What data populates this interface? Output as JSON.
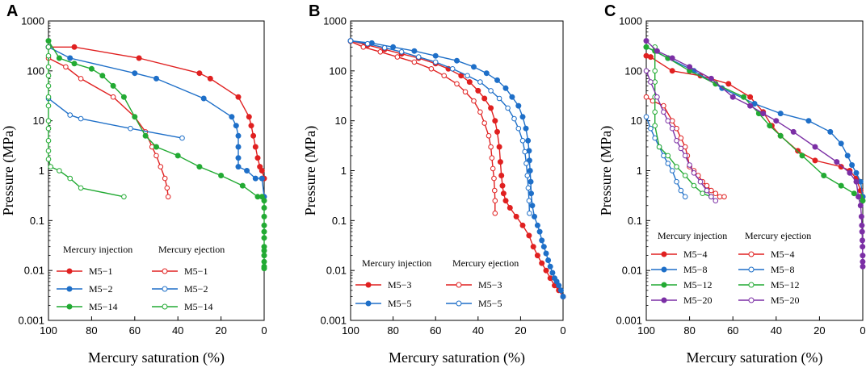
{
  "chart_data": [
    {
      "panel": "A",
      "type": "line",
      "xlabel": "Mercury saturation (%)",
      "ylabel": "Pressure (MPa)",
      "x_reversed": true,
      "xlim": [
        0,
        100
      ],
      "xticks": [
        100,
        80,
        60,
        40,
        20,
        0
      ],
      "y_scale": "log",
      "ylim": [
        0.001,
        1000
      ],
      "yticks": [
        1000,
        100,
        10,
        1,
        0.1,
        0.01,
        0.001
      ],
      "ytick_labels": [
        "1000",
        "100",
        "10",
        "1",
        "0.1",
        "0.01",
        "0.001"
      ],
      "legend_headers": [
        "Mercury injection",
        "Mercury ejection"
      ],
      "series": [
        {
          "name": "M5−1",
          "kind": "injection",
          "color": "#e02020",
          "x": [
            100,
            88,
            58,
            30,
            25,
            12,
            7,
            6,
            5,
            4,
            3,
            2,
            1,
            0
          ],
          "y": [
            300,
            300,
            180,
            90,
            70,
            30,
            12,
            8,
            5,
            3,
            1.8,
            1.2,
            1.0,
            0.7
          ]
        },
        {
          "name": "M5−1",
          "kind": "ejection",
          "color": "#e02020",
          "x": [
            100,
            92,
            85,
            70,
            60,
            55,
            52,
            50,
            48,
            46,
            45,
            44.5
          ],
          "y": [
            180,
            120,
            70,
            30,
            12,
            6,
            3,
            2,
            1.2,
            0.7,
            0.45,
            0.3
          ]
        },
        {
          "name": "M5−2",
          "kind": "injection",
          "color": "#1e6fc8",
          "x": [
            100,
            90,
            60,
            50,
            28,
            15,
            13,
            12,
            12,
            12,
            12,
            8,
            4,
            1,
            0
          ],
          "y": [
            300,
            180,
            90,
            70,
            28,
            12,
            8,
            5,
            3,
            1.8,
            1.2,
            1.0,
            0.7,
            0.7,
            0.3
          ]
        },
        {
          "name": "M5−2",
          "kind": "ejection",
          "color": "#1e6fc8",
          "x": [
            100,
            90,
            85,
            62,
            38
          ],
          "y": [
            28,
            13,
            11,
            7,
            4.5
          ]
        },
        {
          "name": "M5−14",
          "kind": "injection",
          "color": "#22aa33",
          "x": [
            100,
            95,
            88,
            80,
            75,
            70,
            65,
            60,
            55,
            50,
            40,
            30,
            20,
            10,
            3,
            1,
            0,
            0,
            0,
            0,
            0,
            0,
            0,
            0,
            0,
            0,
            0,
            0
          ],
          "y": [
            400,
            180,
            140,
            110,
            80,
            50,
            30,
            12,
            5,
            3,
            2,
            1.2,
            0.8,
            0.5,
            0.3,
            0.3,
            0.25,
            0.18,
            0.12,
            0.08,
            0.06,
            0.045,
            0.03,
            0.025,
            0.02,
            0.015,
            0.012,
            0.011
          ]
        },
        {
          "name": "M5−14",
          "kind": "ejection",
          "color": "#22aa33",
          "x": [
            100,
            100,
            100,
            100,
            100,
            100,
            100,
            100,
            100,
            100,
            100,
            100,
            99,
            95,
            90,
            85,
            65
          ],
          "y": [
            300,
            200,
            120,
            80,
            50,
            30,
            20,
            10,
            7,
            4,
            2.5,
            1.7,
            1.2,
            1.0,
            0.7,
            0.45,
            0.3
          ]
        }
      ]
    },
    {
      "panel": "B",
      "type": "line",
      "xlabel": "Mercury saturation (%)",
      "ylabel": "Pressure (MPa)",
      "x_reversed": true,
      "xlim": [
        0,
        100
      ],
      "xticks": [
        100,
        80,
        60,
        40,
        20,
        0
      ],
      "y_scale": "log",
      "ylim": [
        0.001,
        1000
      ],
      "yticks": [
        1000,
        100,
        10,
        1,
        0.1,
        0.01,
        0.001
      ],
      "ytick_labels": [
        "1000",
        "100",
        "10",
        "1",
        "0.1",
        "0.01",
        "0.001"
      ],
      "legend_headers": [
        "Mercury injection",
        "Mercury ejection"
      ],
      "series": [
        {
          "name": "M5−3",
          "kind": "injection",
          "color": "#e02020",
          "x": [
            100,
            92,
            84,
            76,
            68,
            60,
            54,
            48,
            44,
            40,
            37,
            34,
            32,
            31,
            30,
            29.5,
            29,
            28.5,
            28,
            27,
            25,
            22,
            19,
            16,
            14,
            12,
            10,
            8,
            6,
            4,
            2,
            0
          ],
          "y": [
            400,
            330,
            270,
            220,
            180,
            140,
            110,
            80,
            60,
            40,
            28,
            18,
            10,
            6,
            3,
            1.5,
            0.8,
            0.5,
            0.35,
            0.25,
            0.18,
            0.12,
            0.08,
            0.05,
            0.03,
            0.02,
            0.014,
            0.01,
            0.007,
            0.005,
            0.004,
            0.003
          ]
        },
        {
          "name": "M5−3",
          "kind": "ejection",
          "color": "#e02020",
          "x": [
            100,
            94,
            86,
            78,
            70,
            62,
            56,
            50,
            46,
            42,
            39,
            37,
            35,
            34,
            33.5,
            33,
            32.5,
            32.2,
            32,
            32
          ],
          "y": [
            390,
            300,
            240,
            190,
            150,
            110,
            80,
            55,
            38,
            25,
            15,
            9,
            5,
            3,
            1.8,
            1.1,
            0.7,
            0.4,
            0.25,
            0.14
          ]
        },
        {
          "name": "M5−5",
          "kind": "injection",
          "color": "#1e6fc8",
          "x": [
            100,
            90,
            80,
            70,
            60,
            50,
            42,
            36,
            31,
            27,
            24,
            21,
            19,
            17.5,
            16.5,
            16,
            15.8,
            15.5,
            15.2,
            15,
            14.5,
            13.5,
            12,
            11,
            10,
            9,
            8,
            7,
            6,
            5,
            4,
            3,
            2,
            1,
            0
          ],
          "y": [
            400,
            360,
            300,
            250,
            200,
            160,
            120,
            90,
            65,
            45,
            30,
            20,
            12,
            7,
            4,
            2.5,
            1.6,
            1.0,
            0.6,
            0.35,
            0.2,
            0.12,
            0.08,
            0.06,
            0.04,
            0.03,
            0.022,
            0.016,
            0.012,
            0.009,
            0.007,
            0.006,
            0.005,
            0.004,
            0.003
          ]
        },
        {
          "name": "M5−5",
          "kind": "ejection",
          "color": "#1e6fc8",
          "x": [
            100,
            92,
            84,
            76,
            68,
            60,
            52,
            45,
            39,
            34,
            30,
            26,
            23,
            21,
            19,
            18,
            17.3,
            16.8,
            16.4,
            16,
            15.8
          ],
          "y": [
            400,
            350,
            290,
            240,
            190,
            150,
            110,
            80,
            60,
            40,
            28,
            18,
            11,
            7,
            4,
            2.4,
            1.4,
            0.8,
            0.45,
            0.25,
            0.14
          ]
        }
      ]
    },
    {
      "panel": "C",
      "type": "line",
      "xlabel": "Mercury saturation (%)",
      "ylabel": "Pressure (MPa)",
      "x_reversed": true,
      "xlim": [
        0,
        100
      ],
      "xticks": [
        100,
        80,
        60,
        40,
        20,
        0
      ],
      "y_scale": "log",
      "ylim": [
        0.001,
        1000
      ],
      "yticks": [
        1000,
        100,
        10,
        1,
        0.1,
        0.01,
        0.001
      ],
      "ytick_labels": [
        "1000",
        "100",
        "10",
        "1",
        "0.1",
        "0.01",
        "0.001"
      ],
      "legend_headers": [
        "Mercury injection",
        "Mercury ejection"
      ],
      "series": [
        {
          "name": "M5−4",
          "kind": "injection",
          "color": "#e02020",
          "x": [
            100,
            98,
            88,
            75,
            62,
            52,
            46,
            42,
            38,
            30,
            22,
            10,
            6,
            3,
            1,
            0
          ],
          "y": [
            200,
            190,
            100,
            80,
            55,
            30,
            15,
            8,
            5,
            2.5,
            1.6,
            1.2,
            1.0,
            0.7,
            0.4,
            0.3
          ]
        },
        {
          "name": "M5−4",
          "kind": "ejection",
          "color": "#e02020",
          "x": [
            100,
            97,
            92,
            88,
            86,
            84,
            82,
            81,
            80,
            78,
            76,
            74,
            72,
            70,
            68,
            66,
            64
          ],
          "y": [
            30,
            25,
            20,
            10,
            7,
            4.5,
            3,
            2,
            1.2,
            1.0,
            0.8,
            0.6,
            0.5,
            0.4,
            0.35,
            0.3,
            0.3
          ]
        },
        {
          "name": "M5−8",
          "kind": "injection",
          "color": "#1e6fc8",
          "x": [
            100,
            90,
            78,
            65,
            50,
            38,
            25,
            15,
            10,
            7,
            5,
            3,
            1,
            0
          ],
          "y": [
            300,
            180,
            100,
            45,
            22,
            14,
            10,
            6,
            3.5,
            2,
            1.3,
            0.9,
            0.6,
            0.3
          ]
        },
        {
          "name": "M5−8",
          "kind": "ejection",
          "color": "#1e6fc8",
          "x": [
            100,
            98,
            96,
            94,
            92,
            90,
            88,
            86,
            84,
            82
          ],
          "y": [
            12,
            7,
            4.5,
            3,
            2,
            1.4,
            1.0,
            0.6,
            0.4,
            0.3
          ]
        },
        {
          "name": "M5−12",
          "kind": "injection",
          "color": "#22aa33",
          "x": [
            100,
            96,
            90,
            80,
            68,
            55,
            48,
            43,
            38,
            28,
            18,
            10,
            4,
            1,
            0
          ],
          "y": [
            300,
            250,
            180,
            100,
            55,
            30,
            14,
            8,
            5,
            2,
            0.8,
            0.5,
            0.35,
            0.3,
            0.25
          ]
        },
        {
          "name": "M5−12",
          "kind": "ejection",
          "color": "#22aa33",
          "x": [
            96,
            96,
            96,
            96,
            96,
            96,
            94,
            90,
            86,
            82,
            78,
            74,
            70
          ],
          "y": [
            300,
            100,
            60,
            30,
            15,
            8,
            3,
            2,
            1.2,
            0.8,
            0.5,
            0.35,
            0.3
          ]
        },
        {
          "name": "M5−20",
          "kind": "injection",
          "color": "#7b2fa5",
          "x": [
            100,
            95,
            88,
            80,
            70,
            60,
            52,
            46,
            40,
            32,
            22,
            12,
            6,
            3,
            2,
            1,
            0.6,
            0.4,
            0.3,
            0.2,
            0.1,
            0.05,
            0.02,
            0
          ],
          "y": [
            400,
            250,
            180,
            120,
            70,
            30,
            20,
            14,
            10,
            6,
            3,
            1.5,
            0.9,
            0.6,
            0.3,
            0.2,
            0.12,
            0.08,
            0.06,
            0.04,
            0.03,
            0.02,
            0.015,
            0.012
          ]
        },
        {
          "name": "M5−20",
          "kind": "ejection",
          "color": "#7b2fa5",
          "x": [
            100,
            98,
            95,
            92,
            90,
            88,
            86,
            84,
            82,
            80,
            78,
            75,
            72,
            70,
            68
          ],
          "y": [
            100,
            60,
            30,
            15,
            10,
            7,
            4,
            2.8,
            2,
            1.3,
            0.9,
            0.6,
            0.4,
            0.3,
            0.25
          ]
        }
      ]
    }
  ]
}
